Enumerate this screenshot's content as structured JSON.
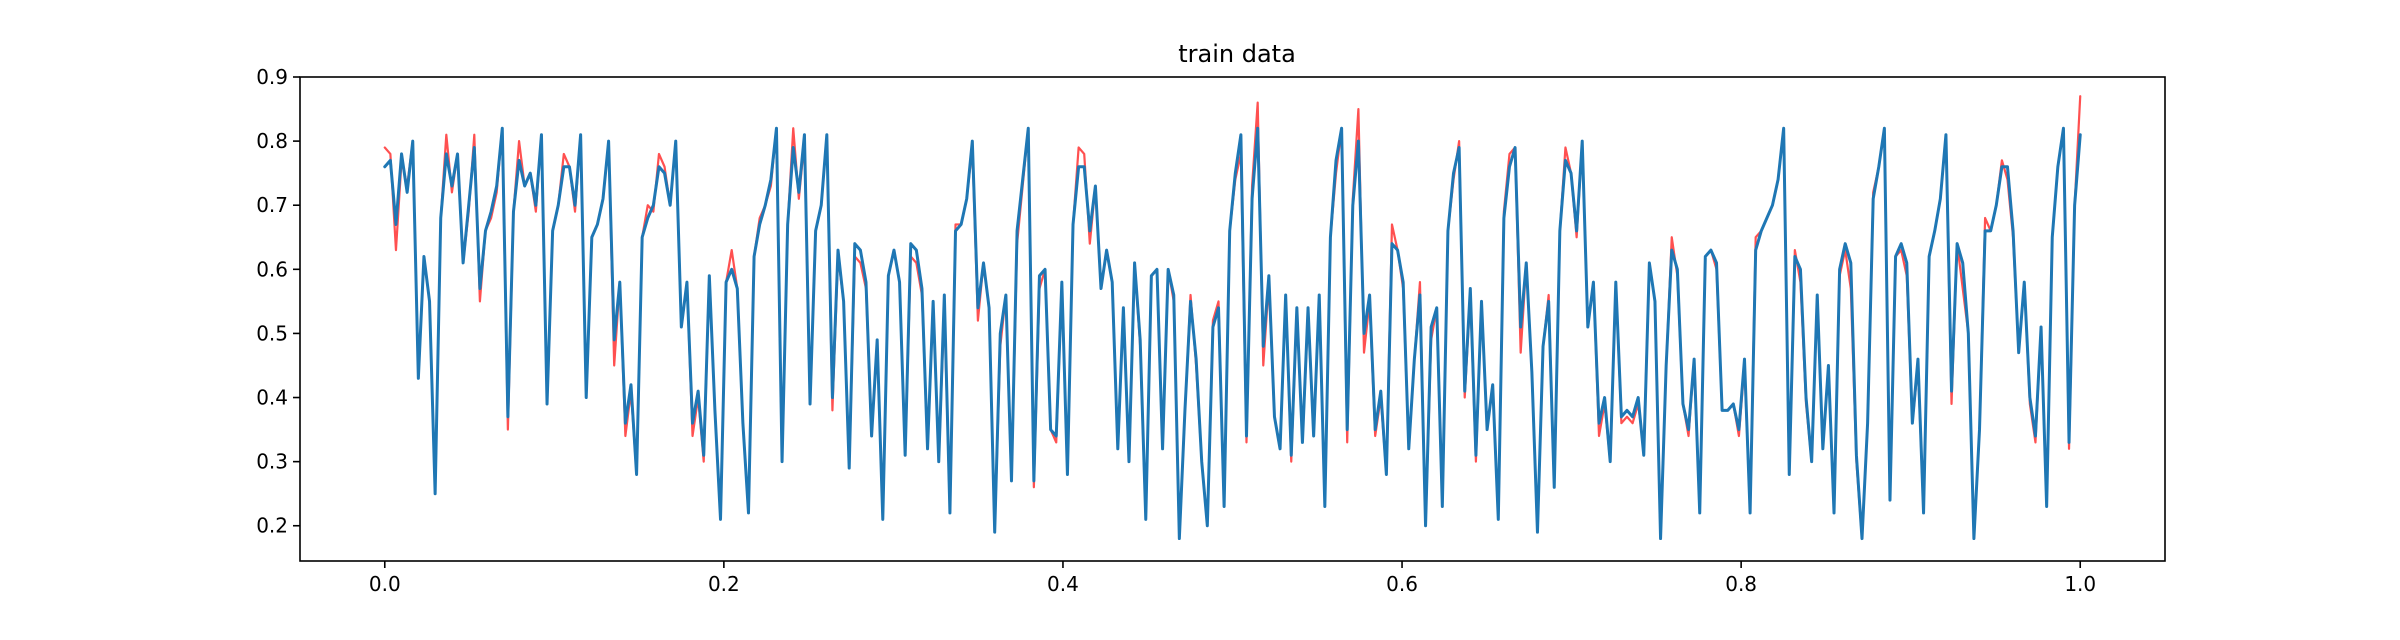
{
  "chart_data": {
    "type": "line",
    "title": "train data",
    "xlabel": "",
    "ylabel": "",
    "xlim": [
      -0.05,
      1.05
    ],
    "ylim": [
      0.145,
      0.9
    ],
    "xticks": [
      "0.0",
      "0.2",
      "0.4",
      "0.6",
      "0.8",
      "1.0"
    ],
    "yticks": [
      "0.2",
      "0.3",
      "0.4",
      "0.5",
      "0.6",
      "0.7",
      "0.8",
      "0.9"
    ],
    "grid": false,
    "legend": "none",
    "x_start": 0.0,
    "x_end": 1.0,
    "series": [
      {
        "color": "#ff5050",
        "values": [
          0.79,
          0.78,
          0.63,
          0.77,
          0.73,
          0.8,
          0.43,
          0.62,
          0.55,
          0.25,
          0.68,
          0.81,
          0.72,
          0.78,
          0.61,
          0.69,
          0.81,
          0.55,
          0.66,
          0.68,
          0.72,
          0.82,
          0.35,
          0.69,
          0.8,
          0.73,
          0.75,
          0.69,
          0.81,
          0.39,
          0.66,
          0.7,
          0.78,
          0.76,
          0.69,
          0.81,
          0.4,
          0.65,
          0.67,
          0.71,
          0.8,
          0.45,
          0.58,
          0.34,
          0.41,
          0.28,
          0.65,
          0.7,
          0.69,
          0.78,
          0.76,
          0.7,
          0.8,
          0.51,
          0.58,
          0.34,
          0.4,
          0.3,
          0.59,
          0.38,
          0.21,
          0.58,
          0.63,
          0.57,
          0.36,
          0.22,
          0.62,
          0.68,
          0.7,
          0.73,
          0.82,
          0.3,
          0.67,
          0.82,
          0.71,
          0.8,
          0.39,
          0.66,
          0.7,
          0.81,
          0.38,
          0.62,
          0.55,
          0.29,
          0.62,
          0.61,
          0.57,
          0.34,
          0.49,
          0.21,
          0.59,
          0.63,
          0.58,
          0.31,
          0.62,
          0.61,
          0.56,
          0.32,
          0.55,
          0.3,
          0.54,
          0.22,
          0.67,
          0.67,
          0.71,
          0.79,
          0.52,
          0.61,
          0.54,
          0.19,
          0.48,
          0.56,
          0.27,
          0.64,
          0.73,
          0.82,
          0.26,
          0.57,
          0.6,
          0.35,
          0.33,
          0.58,
          0.28,
          0.67,
          0.79,
          0.78,
          0.64,
          0.73,
          0.57,
          0.63,
          0.58,
          0.32,
          0.54,
          0.3,
          0.61,
          0.48,
          0.21,
          0.59,
          0.6,
          0.32,
          0.6,
          0.55,
          0.18,
          0.38,
          0.56,
          0.45,
          0.3,
          0.2,
          0.52,
          0.55,
          0.23,
          0.66,
          0.74,
          0.78,
          0.33,
          0.73,
          0.86,
          0.45,
          0.58,
          0.37,
          0.32,
          0.56,
          0.3,
          0.54,
          0.33,
          0.53,
          0.34,
          0.56,
          0.23,
          0.65,
          0.75,
          0.82,
          0.33,
          0.71,
          0.85,
          0.47,
          0.55,
          0.34,
          0.4,
          0.28,
          0.67,
          0.63,
          0.57,
          0.32,
          0.46,
          0.58,
          0.2,
          0.49,
          0.54,
          0.23,
          0.66,
          0.74,
          0.8,
          0.4,
          0.56,
          0.3,
          0.55,
          0.35,
          0.42,
          0.21,
          0.69,
          0.78,
          0.79,
          0.47,
          0.61,
          0.44,
          0.19,
          0.48,
          0.56,
          0.26,
          0.66,
          0.79,
          0.75,
          0.65,
          0.8,
          0.51,
          0.58,
          0.34,
          0.39,
          0.3,
          0.58,
          0.36,
          0.37,
          0.36,
          0.39,
          0.32,
          0.61,
          0.55,
          0.18,
          0.45,
          0.65,
          0.59,
          0.39,
          0.34,
          0.46,
          0.22,
          0.62,
          0.63,
          0.6,
          0.38,
          0.38,
          0.39,
          0.34,
          0.45,
          0.22,
          0.65,
          0.66,
          0.68,
          0.7,
          0.74,
          0.82,
          0.28,
          0.63,
          0.58,
          0.39,
          0.3,
          0.56,
          0.32,
          0.45,
          0.22,
          0.59,
          0.63,
          0.57,
          0.3,
          0.18,
          0.36,
          0.72,
          0.76,
          0.82,
          0.24,
          0.62,
          0.63,
          0.59,
          0.36,
          0.45,
          0.22,
          0.62,
          0.66,
          0.71,
          0.81,
          0.39,
          0.64,
          0.57,
          0.5,
          0.18,
          0.35,
          0.68,
          0.66,
          0.7,
          0.77,
          0.74,
          0.65,
          0.47,
          0.58,
          0.39,
          0.33,
          0.51,
          0.23,
          0.65,
          0.76,
          0.82,
          0.32,
          0.7,
          0.87
        ]
      },
      {
        "color": "#1f77b4",
        "values": [
          0.76,
          0.77,
          0.67,
          0.78,
          0.72,
          0.8,
          0.43,
          0.62,
          0.55,
          0.25,
          0.68,
          0.78,
          0.73,
          0.78,
          0.61,
          0.7,
          0.79,
          0.57,
          0.66,
          0.69,
          0.73,
          0.82,
          0.37,
          0.69,
          0.77,
          0.73,
          0.75,
          0.7,
          0.81,
          0.39,
          0.66,
          0.7,
          0.76,
          0.76,
          0.7,
          0.81,
          0.4,
          0.65,
          0.67,
          0.71,
          0.8,
          0.49,
          0.58,
          0.36,
          0.42,
          0.28,
          0.65,
          0.68,
          0.7,
          0.76,
          0.75,
          0.7,
          0.8,
          0.51,
          0.58,
          0.36,
          0.41,
          0.31,
          0.59,
          0.38,
          0.21,
          0.58,
          0.6,
          0.57,
          0.36,
          0.22,
          0.62,
          0.67,
          0.7,
          0.74,
          0.82,
          0.3,
          0.67,
          0.79,
          0.72,
          0.81,
          0.39,
          0.66,
          0.7,
          0.81,
          0.4,
          0.63,
          0.55,
          0.29,
          0.64,
          0.63,
          0.58,
          0.34,
          0.49,
          0.21,
          0.59,
          0.63,
          0.58,
          0.31,
          0.64,
          0.63,
          0.57,
          0.32,
          0.55,
          0.3,
          0.56,
          0.22,
          0.66,
          0.67,
          0.71,
          0.8,
          0.54,
          0.61,
          0.54,
          0.19,
          0.5,
          0.56,
          0.27,
          0.66,
          0.74,
          0.82,
          0.27,
          0.59,
          0.6,
          0.35,
          0.34,
          0.58,
          0.28,
          0.67,
          0.76,
          0.76,
          0.66,
          0.73,
          0.57,
          0.63,
          0.58,
          0.32,
          0.54,
          0.3,
          0.61,
          0.49,
          0.21,
          0.59,
          0.6,
          0.32,
          0.6,
          0.56,
          0.18,
          0.38,
          0.55,
          0.46,
          0.3,
          0.2,
          0.51,
          0.54,
          0.23,
          0.66,
          0.75,
          0.81,
          0.34,
          0.71,
          0.82,
          0.48,
          0.59,
          0.37,
          0.32,
          0.56,
          0.31,
          0.54,
          0.33,
          0.54,
          0.34,
          0.56,
          0.23,
          0.65,
          0.77,
          0.82,
          0.35,
          0.7,
          0.8,
          0.5,
          0.56,
          0.35,
          0.41,
          0.28,
          0.64,
          0.63,
          0.58,
          0.32,
          0.46,
          0.56,
          0.2,
          0.51,
          0.54,
          0.23,
          0.66,
          0.75,
          0.79,
          0.41,
          0.57,
          0.31,
          0.55,
          0.35,
          0.42,
          0.21,
          0.68,
          0.76,
          0.79,
          0.51,
          0.61,
          0.44,
          0.19,
          0.48,
          0.55,
          0.26,
          0.66,
          0.77,
          0.75,
          0.66,
          0.8,
          0.51,
          0.58,
          0.36,
          0.4,
          0.3,
          0.58,
          0.37,
          0.38,
          0.37,
          0.4,
          0.31,
          0.61,
          0.55,
          0.18,
          0.45,
          0.63,
          0.6,
          0.39,
          0.35,
          0.46,
          0.22,
          0.62,
          0.63,
          0.61,
          0.38,
          0.38,
          0.39,
          0.35,
          0.46,
          0.22,
          0.63,
          0.66,
          0.68,
          0.7,
          0.74,
          0.82,
          0.28,
          0.62,
          0.6,
          0.4,
          0.3,
          0.56,
          0.32,
          0.45,
          0.22,
          0.6,
          0.64,
          0.61,
          0.31,
          0.18,
          0.36,
          0.71,
          0.76,
          0.82,
          0.24,
          0.62,
          0.64,
          0.61,
          0.36,
          0.46,
          0.22,
          0.62,
          0.66,
          0.71,
          0.81,
          0.41,
          0.64,
          0.61,
          0.5,
          0.18,
          0.35,
          0.66,
          0.66,
          0.7,
          0.76,
          0.76,
          0.66,
          0.47,
          0.58,
          0.4,
          0.34,
          0.51,
          0.23,
          0.65,
          0.76,
          0.82,
          0.33,
          0.7,
          0.81
        ]
      }
    ]
  }
}
